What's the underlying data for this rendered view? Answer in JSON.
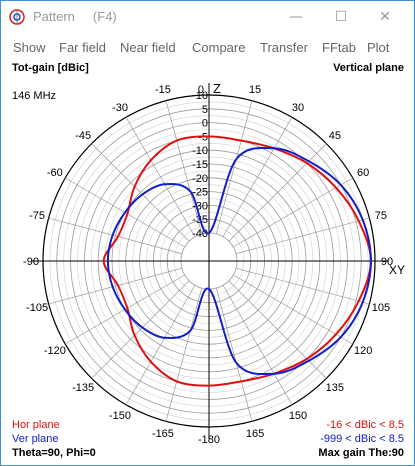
{
  "window": {
    "title": "Pattern",
    "hotkey": "(F4)",
    "minimize_glyph": "—",
    "maximize_glyph": "☐",
    "close_glyph": "✕",
    "icon": "pattern-app-icon"
  },
  "menu": {
    "items": [
      "Show",
      "Far field",
      "Near field",
      "Compare",
      "Transfer",
      "FFtab",
      "Plot"
    ]
  },
  "plot": {
    "top_left_label": "Tot-gain [dBic]",
    "top_right_label": "Vertical plane",
    "frequency": "146 MHz",
    "axis_z": "Z",
    "axis_xy": "XY",
    "bottom_left_label": "Theta=90, Phi=0",
    "bottom_right_label": "Max gain The:90",
    "legend": {
      "hor_label": "Hor plane",
      "ver_label": "Ver plane",
      "hor_range": "-16 < dBic < 8.5",
      "ver_range": "-999 < dBic < 8.5",
      "hor_color": "#e01010",
      "ver_color": "#1020c8"
    }
  },
  "chart_data": {
    "type": "polar",
    "radial_ticks": [
      "10",
      "5",
      "0",
      "-5",
      "-10",
      "-15",
      "-20",
      "-25",
      "-30",
      "-35",
      "-40"
    ],
    "radial_range": [
      -40,
      10
    ],
    "angle_labels": [
      "0",
      "15",
      "30",
      "45",
      "60",
      "75",
      "90",
      "105",
      "120",
      "135",
      "150",
      "165",
      "-180",
      "-165",
      "-150",
      "-135",
      "-120",
      "-105",
      "-90",
      "-75",
      "-60",
      "-45",
      "-30",
      "-15"
    ],
    "grid": true,
    "series": [
      {
        "name": "Hor plane",
        "color": "#e01010",
        "points": [
          [
            0,
            -5
          ],
          [
            15,
            -5
          ],
          [
            30,
            -3
          ],
          [
            45,
            0
          ],
          [
            60,
            3
          ],
          [
            75,
            6
          ],
          [
            90,
            8.5
          ],
          [
            105,
            6
          ],
          [
            120,
            3
          ],
          [
            135,
            0
          ],
          [
            150,
            -3
          ],
          [
            165,
            -5
          ],
          [
            180,
            -5
          ],
          [
            195,
            -5
          ],
          [
            210,
            -8
          ],
          [
            225,
            -12
          ],
          [
            240,
            -16
          ],
          [
            255,
            -16
          ],
          [
            270,
            -12
          ],
          [
            285,
            -16
          ],
          [
            300,
            -16
          ],
          [
            315,
            -12
          ],
          [
            330,
            -8
          ],
          [
            345,
            -5
          ]
        ]
      },
      {
        "name": "Ver plane",
        "color": "#1020c8",
        "points": [
          [
            0,
            -40
          ],
          [
            15,
            -12
          ],
          [
            30,
            -3
          ],
          [
            45,
            1
          ],
          [
            60,
            5
          ],
          [
            75,
            7.5
          ],
          [
            90,
            8.5
          ],
          [
            105,
            7.5
          ],
          [
            120,
            5
          ],
          [
            135,
            1
          ],
          [
            150,
            -3
          ],
          [
            165,
            -12
          ],
          [
            180,
            -40
          ],
          [
            195,
            -24
          ],
          [
            210,
            -18
          ],
          [
            225,
            -16
          ],
          [
            240,
            -15
          ],
          [
            255,
            -14
          ],
          [
            270,
            -13.5
          ],
          [
            285,
            -14
          ],
          [
            300,
            -15
          ],
          [
            315,
            -16
          ],
          [
            330,
            -18
          ],
          [
            345,
            -24
          ]
        ]
      }
    ]
  }
}
